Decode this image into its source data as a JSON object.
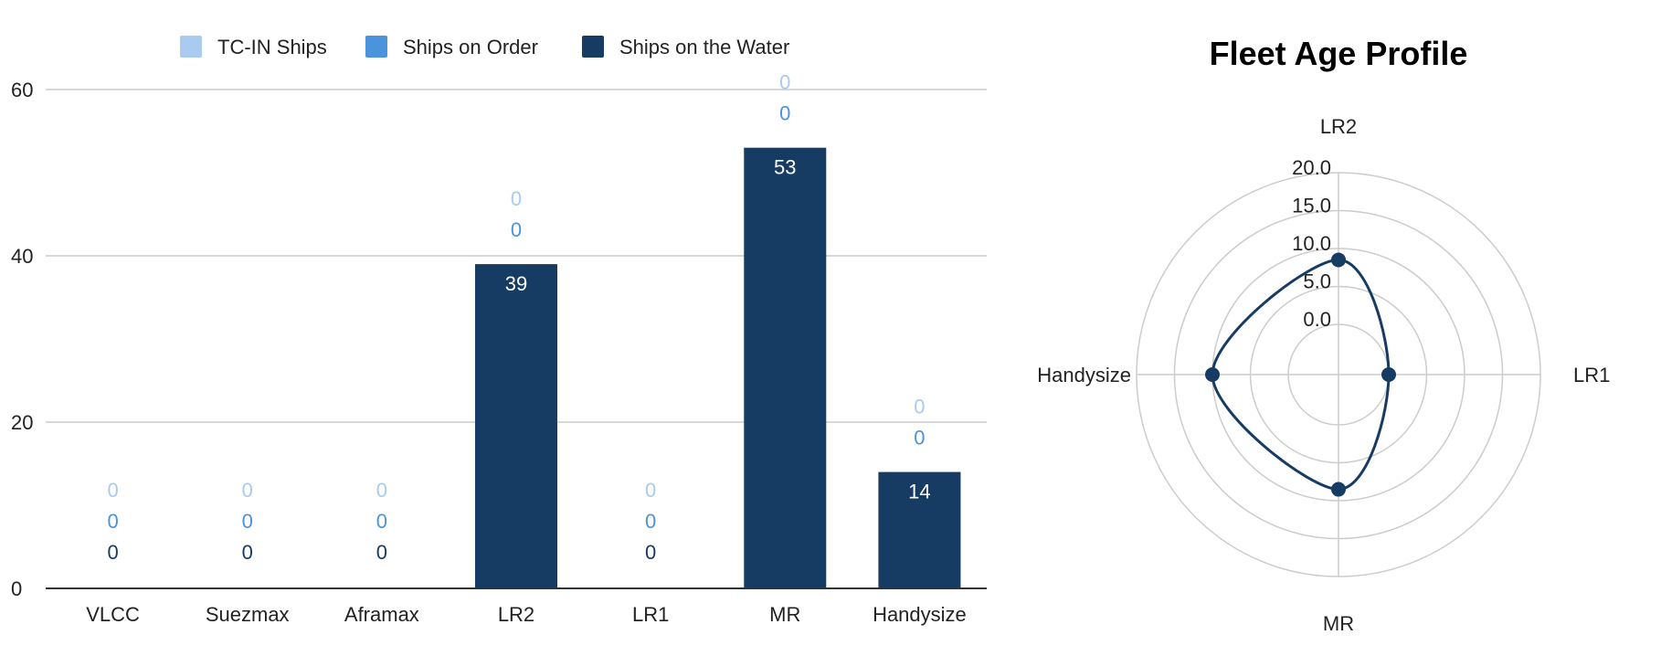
{
  "colors": {
    "tc_in": "#a8cbef",
    "on_order": "#4b93db",
    "on_water": "#173c63",
    "gridline": "#cccccc",
    "axis_line": "#333333",
    "radar_line": "#173c63"
  },
  "chart_data": [
    {
      "type": "bar",
      "stacked": true,
      "title": "",
      "xlabel": "",
      "ylabel": "",
      "categories": [
        "VLCC",
        "Suezmax",
        "Aframax",
        "LR2",
        "LR1",
        "MR",
        "Handysize"
      ],
      "series": [
        {
          "name": "TC-IN Ships",
          "color": "#a8cbef",
          "values": [
            0,
            0,
            0,
            0,
            0,
            0,
            0
          ]
        },
        {
          "name": "Ships on Order",
          "color": "#4b93db",
          "values": [
            0,
            0,
            0,
            0,
            0,
            0,
            0
          ]
        },
        {
          "name": "Ships on the Water",
          "color": "#173c63",
          "values": [
            0,
            0,
            0,
            39,
            0,
            53,
            14
          ]
        }
      ],
      "ylim": [
        0,
        60
      ],
      "yticks": [
        "0",
        "20",
        "40",
        "60"
      ],
      "grid": true,
      "legend": "top"
    },
    {
      "type": "radar",
      "title": "Fleet Age Profile",
      "axes": [
        "LR2",
        "LR1",
        "MR",
        "Handysize"
      ],
      "values": [
        8.5,
        0,
        8.5,
        10
      ],
      "rlim": [
        0,
        20
      ],
      "rticks": [
        "0.0",
        "5.0",
        "10.0",
        "15.0",
        "20.0"
      ],
      "grid": true
    }
  ]
}
